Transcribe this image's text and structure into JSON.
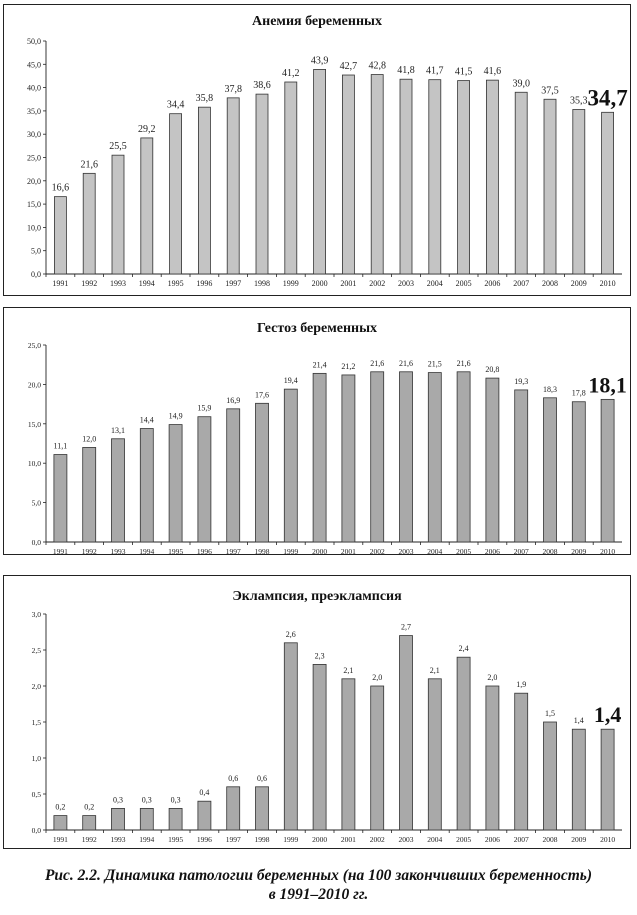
{
  "chart_data": [
    {
      "type": "bar",
      "title": "Анемия беременных",
      "categories": [
        "1991",
        "1992",
        "1993",
        "1994",
        "1995",
        "1996",
        "1997",
        "1998",
        "1999",
        "2000",
        "2001",
        "2002",
        "2003",
        "2004",
        "2005",
        "2006",
        "2007",
        "2008",
        "2009",
        "2010"
      ],
      "values": [
        16.6,
        21.6,
        25.5,
        29.2,
        34.4,
        35.8,
        37.8,
        38.6,
        41.2,
        43.9,
        42.7,
        42.8,
        41.8,
        41.7,
        41.5,
        41.6,
        39.0,
        37.5,
        35.3,
        34.7
      ],
      "value_labels": [
        "16,6",
        "21,6",
        "25,5",
        "29,2",
        "34,4",
        "35,8",
        "37,8",
        "38,6",
        "41,2",
        "43,9",
        "42,7",
        "42,8",
        "41,8",
        "41,7",
        "41,5",
        "41,6",
        "39,0",
        "37,5",
        "35,3",
        "34,7"
      ],
      "ylim": [
        0,
        50
      ],
      "yticks": [
        "0,0",
        "5,0",
        "10,0",
        "15,0",
        "20,0",
        "25,0",
        "30,0",
        "35,0",
        "40,0",
        "45,0",
        "50,0"
      ],
      "bar_color": "#c4c4c4",
      "highlight_last": true
    },
    {
      "type": "bar",
      "title": "Гестоз беременных",
      "categories": [
        "1991",
        "1992",
        "1993",
        "1994",
        "1995",
        "1996",
        "1997",
        "1998",
        "1999",
        "2000",
        "2001",
        "2002",
        "2003",
        "2004",
        "2005",
        "2006",
        "2007",
        "2008",
        "2009",
        "2010"
      ],
      "values": [
        11.1,
        12.0,
        13.1,
        14.4,
        14.9,
        15.9,
        16.9,
        17.6,
        19.4,
        21.4,
        21.2,
        21.6,
        21.6,
        21.5,
        21.6,
        20.8,
        19.3,
        18.3,
        17.8,
        18.1
      ],
      "value_labels": [
        "11,1",
        "12,0",
        "13,1",
        "14,4",
        "14,9",
        "15,9",
        "16,9",
        "17,6",
        "19,4",
        "21,4",
        "21,2",
        "21,6",
        "21,6",
        "21,5",
        "21,6",
        "20,8",
        "19,3",
        "18,3",
        "17,8",
        "18,1"
      ],
      "ylim": [
        0,
        25
      ],
      "yticks": [
        "0,0",
        "5,0",
        "10,0",
        "15,0",
        "20,0",
        "25,0"
      ],
      "bar_color": "#a9a9a9",
      "highlight_last": true
    },
    {
      "type": "bar",
      "title": "Эклампсия, преэклампсия",
      "categories": [
        "1991",
        "1992",
        "1993",
        "1994",
        "1995",
        "1996",
        "1997",
        "1998",
        "1999",
        "2000",
        "2001",
        "2002",
        "2003",
        "2004",
        "2005",
        "2006",
        "2007",
        "2008",
        "2009",
        "2010"
      ],
      "values": [
        0.2,
        0.2,
        0.3,
        0.3,
        0.3,
        0.4,
        0.6,
        0.6,
        2.6,
        2.3,
        2.1,
        2.0,
        2.7,
        2.1,
        2.4,
        2.0,
        1.9,
        1.5,
        1.4,
        1.4
      ],
      "value_labels": [
        "0,2",
        "0,2",
        "0,3",
        "0,3",
        "0,3",
        "0,4",
        "0,6",
        "0,6",
        "2,6",
        "2,3",
        "2,1",
        "2,0",
        "2,7",
        "2,1",
        "2,4",
        "2,0",
        "1,9",
        "1,5",
        "1,4",
        "1,4"
      ],
      "ylim": [
        0,
        3
      ],
      "yticks": [
        "0,0",
        "0,5",
        "1,0",
        "1,5",
        "2,0",
        "2,5",
        "3,0"
      ],
      "bar_color": "#a9a9a9",
      "highlight_last": true
    }
  ],
  "caption": {
    "line1": "Рис. 2.2. Динамика патологии беременных (на 100 закончивших беременность)",
    "line2": "в 1991–2010 гг."
  }
}
